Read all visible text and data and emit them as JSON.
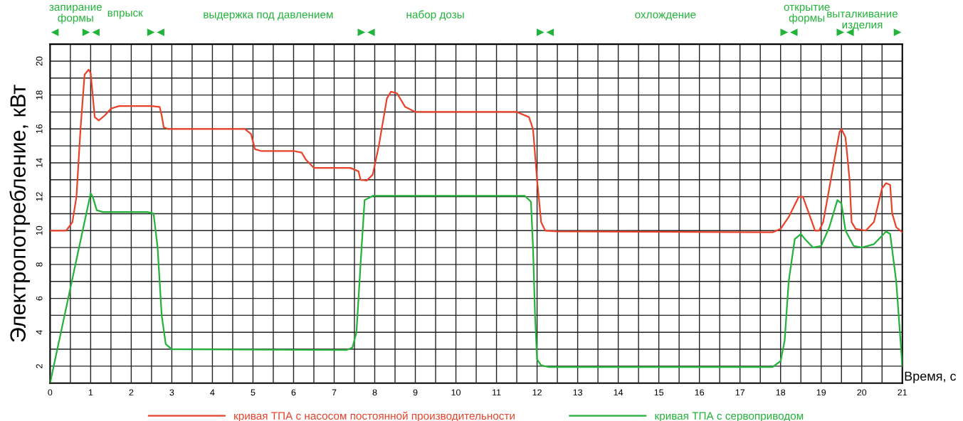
{
  "chart_data": {
    "type": "line",
    "xlabel": "Время, с",
    "ylabel": "Электропотребление, кВт",
    "xlim": [
      0,
      21
    ],
    "ylim": [
      1,
      21
    ],
    "xticks": [
      0,
      {
        "value": 0.5,
        "label": null
      },
      1,
      {
        "value": 1.5,
        "label": null
      },
      2,
      {
        "value": 2.5,
        "label": null
      },
      3,
      {
        "value": 3.5,
        "label": null
      },
      4,
      {
        "value": 4.5,
        "label": null
      },
      5,
      {
        "value": 5.5,
        "label": null
      },
      6,
      {
        "value": 6.5,
        "label": null
      },
      7,
      {
        "value": 7.5,
        "label": null
      },
      8,
      {
        "value": 8.5,
        "label": null
      },
      9,
      {
        "value": 9.5,
        "label": null
      },
      10,
      {
        "value": 10.5,
        "label": null
      },
      11,
      {
        "value": 11.5,
        "label": null
      },
      12,
      {
        "value": 12.5,
        "label": null
      },
      13,
      {
        "value": 13.5,
        "label": null
      },
      14,
      {
        "value": 14.5,
        "label": null
      },
      15,
      {
        "value": 15.5,
        "label": null
      },
      16,
      {
        "value": 16.5,
        "label": null
      },
      17,
      {
        "value": 17.5,
        "label": null
      },
      18,
      {
        "value": 18.5,
        "label": null
      },
      19,
      {
        "value": 19.5,
        "label": null
      },
      20,
      {
        "value": 20.5,
        "label": null
      },
      21
    ],
    "yticks": [
      {
        "value": 1,
        "label": null
      },
      2,
      {
        "value": 3,
        "label": null
      },
      4,
      {
        "value": 5,
        "label": null
      },
      6,
      {
        "value": 7,
        "label": null
      },
      8,
      {
        "value": 9,
        "label": null
      },
      10,
      {
        "value": 11,
        "label": null
      },
      12,
      {
        "value": 13,
        "label": null
      },
      14,
      {
        "value": 15,
        "label": null
      },
      16,
      {
        "value": 17,
        "label": null
      },
      18,
      {
        "value": 19,
        "label": null
      },
      20,
      {
        "value": 21,
        "label": null
      }
    ],
    "grid": true,
    "legend": "bottom",
    "marker": "none",
    "line_style": "solid",
    "annotations": [
      "запирание\nформы",
      "впрыск",
      "выдержка под давлением",
      "набор дозы",
      "охлождение",
      "открытие\nформы",
      "выталкивание\nизделия"
    ],
    "series": [
      {
        "name": "кривая ТПА с насосом постоянной производительности",
        "color": "#e8432a",
        "x": [
          0,
          0.4,
          0.55,
          0.65,
          0.75,
          0.85,
          0.95,
          1.0,
          1.05,
          1.1,
          1.2,
          1.35,
          1.5,
          1.7,
          2.5,
          2.7,
          2.75,
          2.8,
          2.9,
          4.8,
          4.95,
          5.05,
          5.2,
          6.0,
          6.2,
          6.3,
          6.5,
          7.4,
          7.6,
          7.65,
          7.8,
          7.95,
          8.1,
          8.3,
          8.4,
          8.55,
          8.75,
          9,
          11.5,
          11.8,
          11.9,
          12.0,
          12.1,
          12.2,
          12.5,
          17.8,
          18.0,
          18.2,
          18.45,
          18.55,
          18.7,
          18.85,
          18.95,
          19.05,
          19.2,
          19.45,
          19.5,
          19.6,
          19.7,
          19.75,
          19.85,
          20.1,
          20.3,
          20.5,
          20.6,
          20.7,
          20.75,
          20.85,
          21
        ],
        "values": [
          10,
          10,
          10.5,
          12,
          16,
          19.2,
          19.5,
          19.3,
          18,
          16.7,
          16.5,
          16.8,
          17.2,
          17.35,
          17.35,
          17.3,
          16.8,
          16.1,
          16.0,
          16.0,
          15.7,
          14.8,
          14.7,
          14.7,
          14.6,
          14.2,
          13.7,
          13.7,
          13.5,
          13.0,
          12.95,
          13.3,
          15,
          17.8,
          18.2,
          18.1,
          17.3,
          17.0,
          17.0,
          16.7,
          16.0,
          13,
          10.5,
          10.0,
          9.95,
          9.9,
          10.1,
          10.8,
          12.0,
          12.0,
          11.0,
          10.0,
          10.0,
          10.5,
          12.5,
          15.8,
          16.0,
          15.5,
          13,
          10.5,
          10.1,
          10.0,
          10.5,
          12.5,
          12.8,
          12.7,
          11,
          10.2,
          9.9
        ]
      },
      {
        "name": "кривая ТПА с сервоприводом",
        "color": "#22b33a",
        "x": [
          0,
          1.0,
          1.05,
          1.15,
          1.3,
          2.4,
          2.55,
          2.65,
          2.75,
          2.85,
          3.0,
          7.3,
          7.45,
          7.55,
          7.65,
          7.75,
          7.95,
          11.7,
          11.85,
          11.9,
          11.95,
          12.0,
          12.1,
          12.3,
          17.8,
          18.0,
          18.1,
          18.2,
          18.35,
          18.5,
          18.6,
          18.8,
          19.0,
          19.2,
          19.4,
          19.5,
          19.6,
          19.8,
          20.0,
          20.3,
          20.5,
          20.6,
          20.7,
          20.85,
          21
        ],
        "values": [
          1,
          12.2,
          12.0,
          11.2,
          11.1,
          11.1,
          11.0,
          9,
          5,
          3.3,
          3.0,
          2.95,
          3.1,
          4,
          8,
          11.8,
          12.05,
          12.05,
          11.7,
          9,
          5,
          2.4,
          2.05,
          1.95,
          1.95,
          2.3,
          3.5,
          7,
          9.5,
          9.8,
          9.5,
          9.0,
          9.1,
          10.2,
          11.8,
          11.6,
          10.0,
          9.1,
          9.0,
          9.2,
          9.7,
          9.95,
          9.8,
          7,
          2
        ]
      }
    ]
  }
}
